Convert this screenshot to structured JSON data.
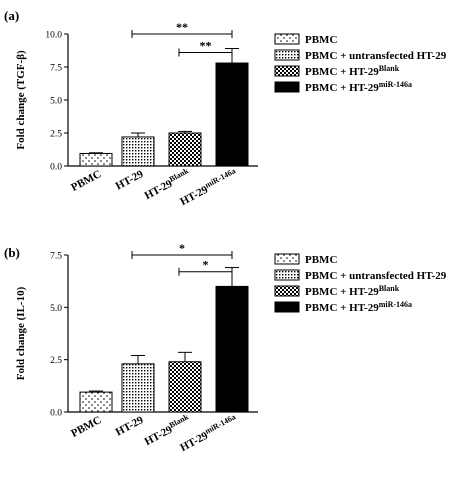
{
  "chart_data": [
    {
      "type": "bar",
      "panel_label": "(a)",
      "ylabel": "Fold change (TGF-β)",
      "ylim": [
        0,
        10
      ],
      "yticks": [
        "0.0",
        "2.5",
        "5.0",
        "7.5",
        "10.0"
      ],
      "ytick_values": [
        0,
        2.5,
        5,
        7.5,
        10
      ],
      "categories": [
        {
          "base": "PBMC",
          "sup": ""
        },
        {
          "base": "HT-29",
          "sup": ""
        },
        {
          "base": "HT-29",
          "sup": "Blank"
        },
        {
          "base": "HT-29",
          "sup": "miR-146a"
        }
      ],
      "values": [
        0.95,
        2.2,
        2.5,
        7.8
      ],
      "errors": [
        0.05,
        0.3,
        0.12,
        1.1
      ],
      "patterns": [
        "sparse-dots",
        "dense-dots",
        "checker",
        "solid"
      ],
      "significance": [
        {
          "from": 1,
          "to": 3,
          "label": "**",
          "y": 10.0
        },
        {
          "from": 2,
          "to": 3,
          "label": "**",
          "y": 8.6
        }
      ],
      "legend": [
        {
          "pattern": "sparse-dots",
          "base": "PBMC",
          "sup": ""
        },
        {
          "pattern": "dense-dots",
          "base": "PBMC + untransfected HT-29",
          "sup": ""
        },
        {
          "pattern": "checker",
          "base": "PBMC + HT-29",
          "sup": "Blank"
        },
        {
          "pattern": "solid",
          "base": "PBMC + HT-29",
          "sup": "miR-146a"
        }
      ],
      "legend_position": "right"
    },
    {
      "type": "bar",
      "panel_label": "(b)",
      "ylabel": "Fold change (IL-10)",
      "ylim": [
        0,
        7.5
      ],
      "yticks": [
        "0.0",
        "2.5",
        "5.0",
        "7.5"
      ],
      "ytick_values": [
        0,
        2.5,
        5,
        7.5
      ],
      "categories": [
        {
          "base": "PBMC",
          "sup": ""
        },
        {
          "base": "HT-29",
          "sup": ""
        },
        {
          "base": "HT-29",
          "sup": "Blank"
        },
        {
          "base": "HT-29",
          "sup": "miR-146a"
        }
      ],
      "values": [
        0.95,
        2.3,
        2.4,
        6.0
      ],
      "errors": [
        0.05,
        0.4,
        0.45,
        0.9
      ],
      "patterns": [
        "sparse-dots",
        "dense-dots",
        "checker",
        "solid"
      ],
      "significance": [
        {
          "from": 1,
          "to": 3,
          "label": "*",
          "y": 7.5
        },
        {
          "from": 2,
          "to": 3,
          "label": "*",
          "y": 6.7
        }
      ],
      "legend": [
        {
          "pattern": "sparse-dots",
          "base": "PBMC",
          "sup": ""
        },
        {
          "pattern": "dense-dots",
          "base": "PBMC + untransfected HT-29",
          "sup": ""
        },
        {
          "pattern": "checker",
          "base": "PBMC + HT-29",
          "sup": "Blank"
        },
        {
          "pattern": "solid",
          "base": "PBMC + HT-29",
          "sup": "miR-146a"
        }
      ],
      "legend_position": "right"
    }
  ]
}
